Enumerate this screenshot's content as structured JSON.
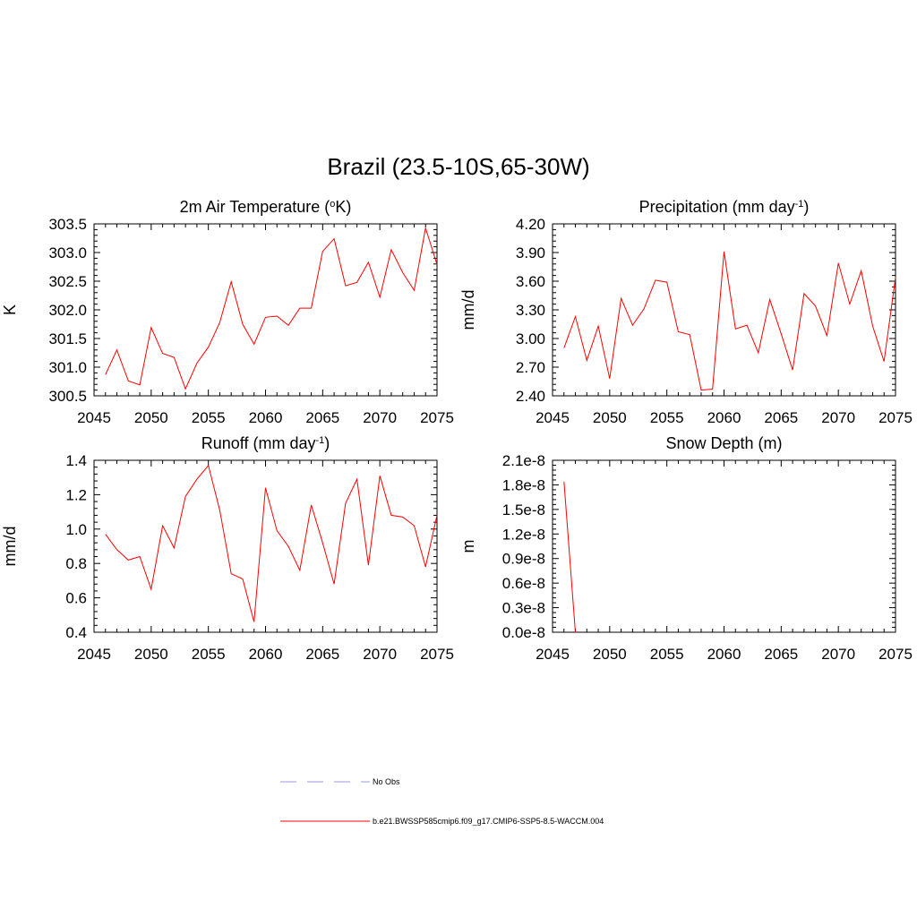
{
  "title": "Brazil (23.5-10S,65-30W)",
  "colors": {
    "series": "#ff0000",
    "obs": "#9999dd",
    "axes": "#000000"
  },
  "legend": {
    "obs_label": "No Obs",
    "model_label": "b.e21.BWSSP585cmip6.f09_g17.CMIP6-SSP5-8.5-WACCM.004"
  },
  "chart_data": [
    {
      "type": "line",
      "title": "2m Air Temperature (",
      "title_sup": "o",
      "title_suffix": "K)",
      "ylabel": "K",
      "xlim": [
        2045,
        2075
      ],
      "ylim": [
        300.5,
        303.5
      ],
      "xticks": [
        "2045",
        "2050",
        "2055",
        "2060",
        "2065",
        "2070",
        "2075"
      ],
      "yticks": [
        "300.5",
        "301.0",
        "301.5",
        "302.0",
        "302.5",
        "303.0",
        "303.5"
      ],
      "x": [
        2046,
        2047,
        2048,
        2049,
        2050,
        2051,
        2052,
        2053,
        2054,
        2055,
        2056,
        2057,
        2058,
        2059,
        2060,
        2061,
        2062,
        2063,
        2064,
        2065,
        2066,
        2067,
        2068,
        2069,
        2070,
        2071,
        2072,
        2073,
        2074,
        2075
      ],
      "values": [
        300.87,
        301.3,
        300.76,
        300.69,
        301.69,
        301.24,
        301.17,
        300.62,
        301.07,
        301.35,
        301.78,
        302.49,
        301.75,
        301.4,
        301.87,
        301.89,
        301.73,
        302.03,
        302.03,
        303.02,
        303.24,
        302.42,
        302.48,
        302.83,
        302.22,
        303.05,
        302.65,
        302.34,
        303.43,
        302.79
      ]
    },
    {
      "type": "line",
      "title": "Precipitation (mm day",
      "title_sup": "-1",
      "title_suffix": ")",
      "ylabel": "mm/d",
      "xlim": [
        2045,
        2075
      ],
      "ylim": [
        2.4,
        4.2
      ],
      "xticks": [
        "2045",
        "2050",
        "2055",
        "2060",
        "2065",
        "2070",
        "2075"
      ],
      "yticks": [
        "2.40",
        "2.70",
        "3.00",
        "3.30",
        "3.60",
        "3.90",
        "4.20"
      ],
      "x": [
        2046,
        2047,
        2048,
        2049,
        2050,
        2051,
        2052,
        2053,
        2054,
        2055,
        2056,
        2057,
        2058,
        2059,
        2060,
        2061,
        2062,
        2063,
        2064,
        2065,
        2066,
        2067,
        2068,
        2069,
        2070,
        2071,
        2072,
        2073,
        2074,
        2075
      ],
      "values": [
        2.9,
        3.23,
        2.77,
        3.13,
        2.58,
        3.42,
        3.14,
        3.31,
        3.61,
        3.59,
        3.07,
        3.04,
        2.46,
        2.47,
        3.91,
        3.1,
        3.14,
        2.85,
        3.41,
        3.05,
        2.67,
        3.47,
        3.34,
        3.03,
        3.79,
        3.36,
        3.71,
        3.13,
        2.76,
        3.64
      ]
    },
    {
      "type": "line",
      "title": "Runoff (mm day",
      "title_sup": "-1",
      "title_suffix": ")",
      "ylabel": "mm/d",
      "xlim": [
        2045,
        2075
      ],
      "ylim": [
        0.4,
        1.4
      ],
      "xticks": [
        "2045",
        "2050",
        "2055",
        "2060",
        "2065",
        "2070",
        "2075"
      ],
      "yticks": [
        "0.4",
        "0.6",
        "0.8",
        "1.0",
        "1.2",
        "1.4"
      ],
      "x": [
        2046,
        2047,
        2048,
        2049,
        2050,
        2051,
        2052,
        2053,
        2054,
        2055,
        2056,
        2057,
        2058,
        2059,
        2060,
        2061,
        2062,
        2063,
        2064,
        2065,
        2066,
        2067,
        2068,
        2069,
        2070,
        2071,
        2072,
        2073,
        2074,
        2075
      ],
      "values": [
        0.97,
        0.88,
        0.82,
        0.84,
        0.65,
        1.02,
        0.89,
        1.19,
        1.29,
        1.37,
        1.11,
        0.74,
        0.71,
        0.46,
        1.24,
        0.99,
        0.9,
        0.76,
        1.14,
        0.92,
        0.68,
        1.15,
        1.29,
        0.79,
        1.31,
        1.08,
        1.07,
        1.02,
        0.78,
        1.08
      ]
    },
    {
      "type": "line",
      "title": "Snow Depth (m)",
      "title_sup": "",
      "title_suffix": "",
      "ylabel": "m",
      "xlim": [
        2045,
        2075
      ],
      "ylim": [
        0,
        2.1e-08
      ],
      "xticks": [
        "2045",
        "2050",
        "2055",
        "2060",
        "2065",
        "2070",
        "2075"
      ],
      "yticks": [
        "0.0e-8",
        "0.3e-8",
        "0.6e-8",
        "0.9e-8",
        "1.2e-8",
        "1.5e-8",
        "1.8e-8",
        "2.1e-8"
      ],
      "x": [
        2046,
        2047
      ],
      "values": [
        1.84e-08,
        0
      ]
    }
  ]
}
